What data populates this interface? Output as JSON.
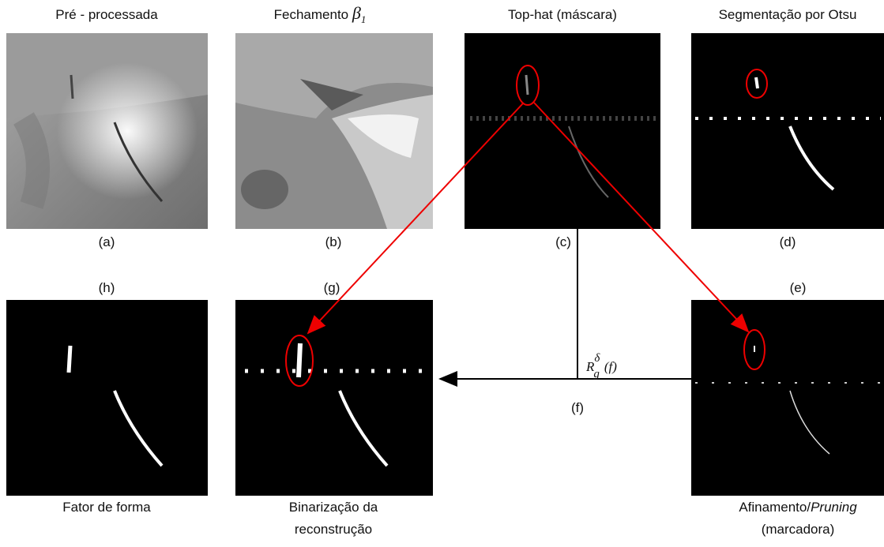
{
  "panels": {
    "a": {
      "title": "Pré - processada",
      "label": "(a)"
    },
    "b": {
      "title": "Fechamento",
      "symbol": "β",
      "subscript": "1",
      "label": "(b)"
    },
    "c": {
      "title": "Top-hat (máscara)",
      "label": "(c)"
    },
    "d": {
      "title": "Segmentação por Otsu",
      "label": "(d)"
    },
    "h": {
      "label": "(h)",
      "caption": "Fator de forma"
    },
    "g": {
      "label": "(g)",
      "caption_lines": [
        "Binarização da",
        "reconstrução"
      ]
    },
    "e": {
      "label": "(e)",
      "caption_parts": [
        "Afinamento/",
        "Pruning"
      ],
      "caption_line2": "(marcadora)"
    }
  },
  "operator": {
    "symbol": "R",
    "sub": "g",
    "sup": "δ",
    "arg": "(f)",
    "label": "(f)"
  }
}
